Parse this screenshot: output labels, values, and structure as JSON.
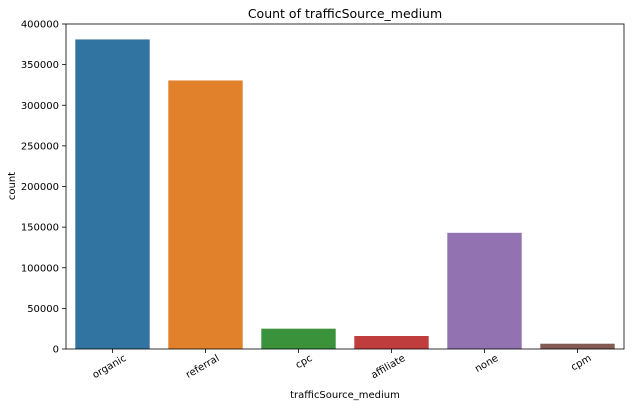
{
  "chart_data": {
    "type": "bar",
    "title": "Count of trafficSource_medium",
    "xlabel": "trafficSource_medium",
    "ylabel": "count",
    "categories": [
      "organic",
      "referral",
      "cpc",
      "affiliate",
      "none",
      "cpm"
    ],
    "values": [
      381000,
      330500,
      25000,
      16000,
      143000,
      6500
    ],
    "colors": [
      "#3274a1",
      "#e1812c",
      "#3a923a",
      "#c03d3e",
      "#9372b2",
      "#845b53"
    ],
    "ylim": [
      0,
      400000
    ],
    "yticks": [
      0,
      50000,
      100000,
      150000,
      200000,
      250000,
      300000,
      350000,
      400000
    ],
    "grid": false
  }
}
